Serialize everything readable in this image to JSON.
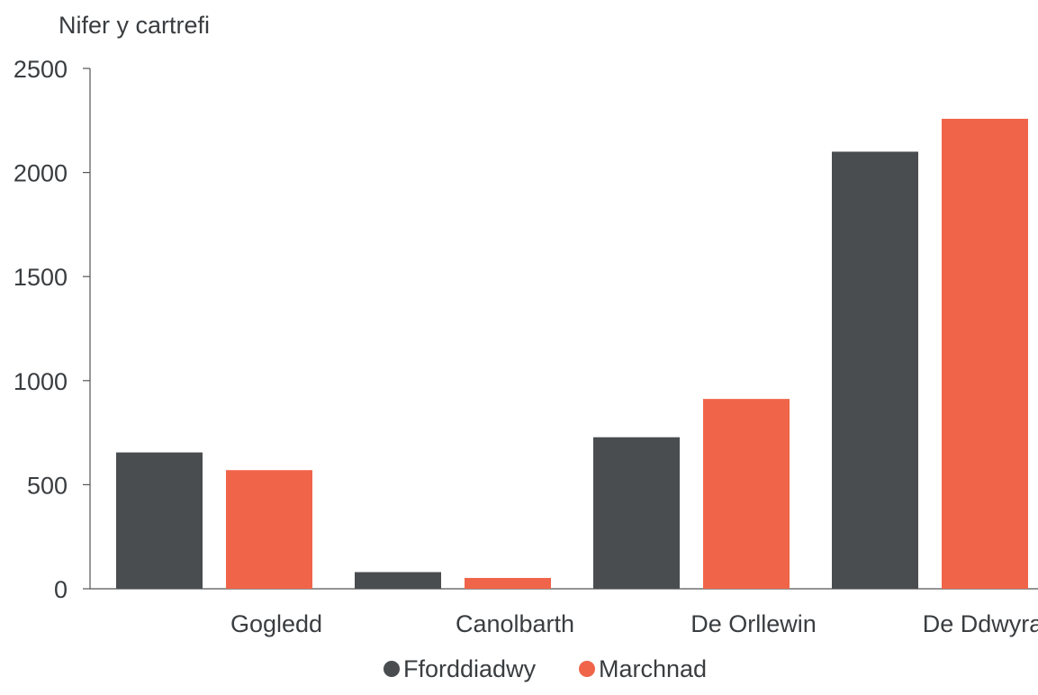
{
  "chart_data": {
    "type": "bar",
    "ylabel": "Nifer y cartrefi",
    "xlabel": "",
    "categories": [
      "Gogledd",
      "Canolbarth",
      "De Orllewin",
      "De Ddwyrain"
    ],
    "series": [
      {
        "name": "Fforddiadwy",
        "color": "#4a4d50",
        "values": [
          655,
          80,
          728,
          2100
        ]
      },
      {
        "name": "Marchnad",
        "color": "#f0644a",
        "values": [
          570,
          52,
          912,
          2258
        ]
      }
    ],
    "ylim": [
      0,
      2500
    ],
    "yticks": [
      0,
      500,
      1000,
      1500,
      2000,
      2500
    ],
    "grid": false,
    "legend": "bottom-center"
  }
}
